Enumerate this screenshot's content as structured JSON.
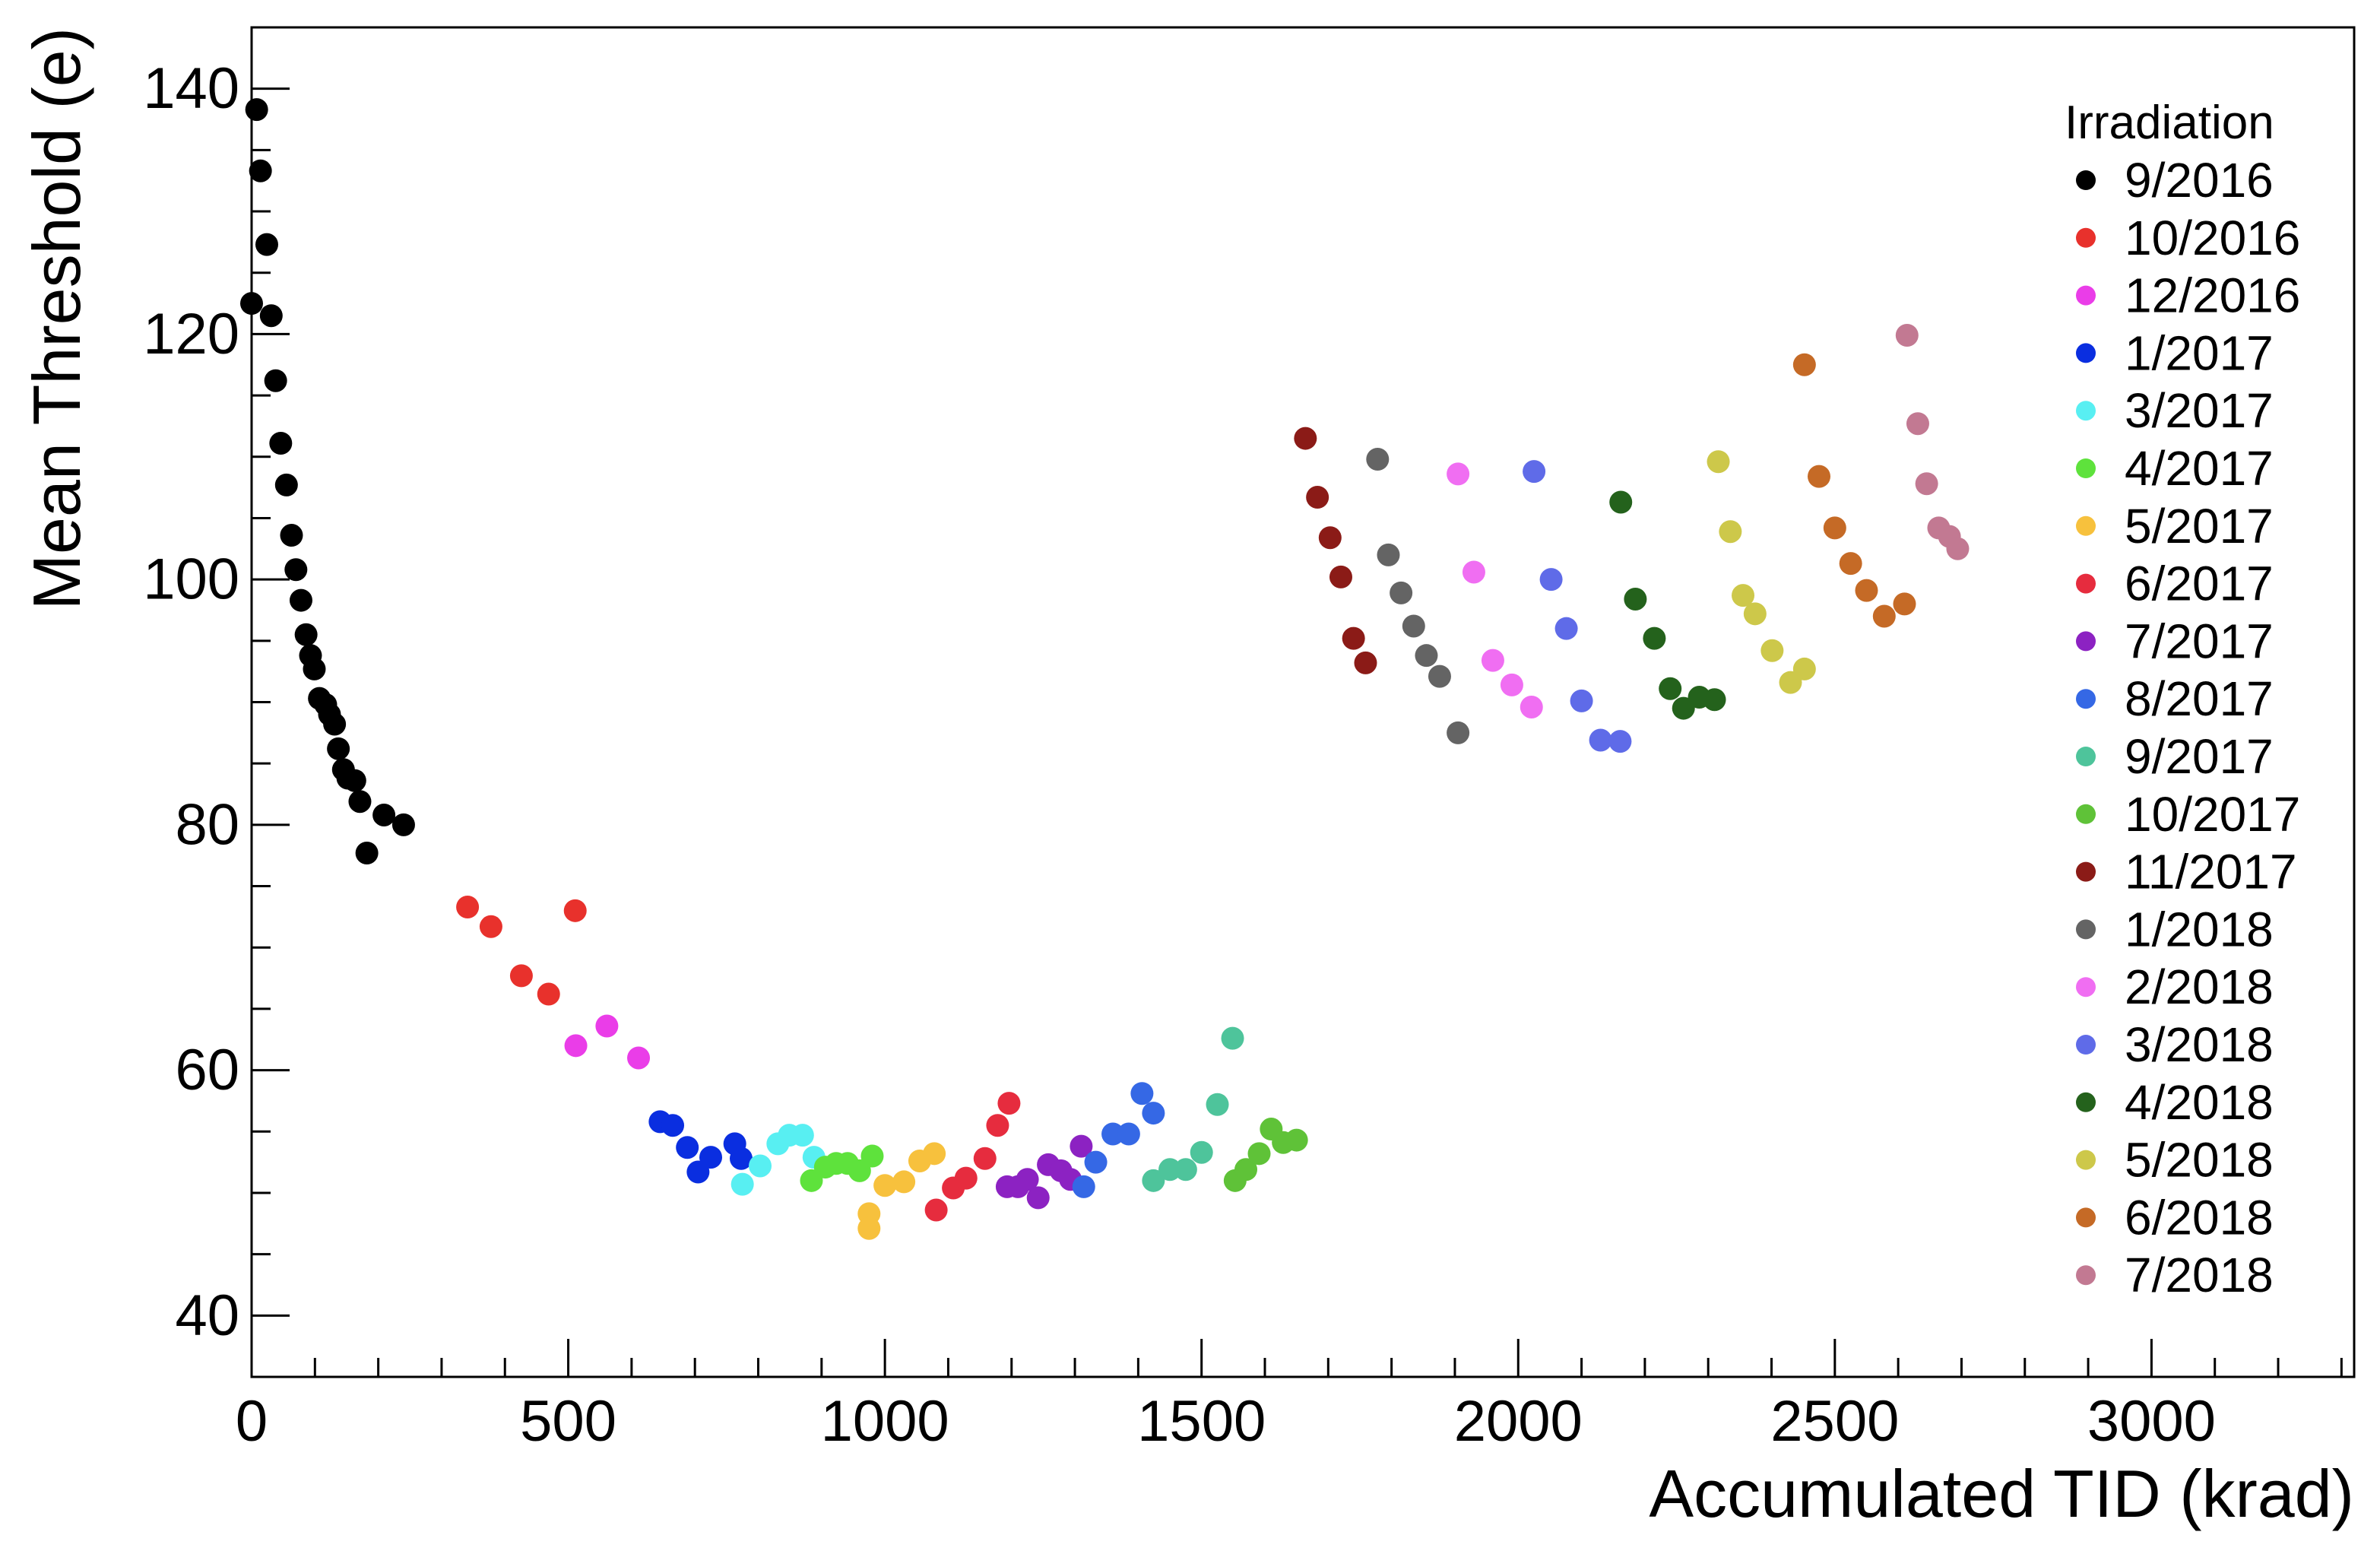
{
  "chart_data": {
    "type": "scatter",
    "xlabel": "Accumulated TID (krad)",
    "ylabel": "Mean Threshold (e)",
    "xlim": [
      0,
      3320
    ],
    "ylim": [
      35,
      145
    ],
    "xticks": [
      "0",
      "500",
      "1000",
      "1500",
      "2000",
      "2500",
      "3000"
    ],
    "xtick_values": [
      0,
      500,
      1000,
      1500,
      2000,
      2500,
      3000
    ],
    "yticks": [
      "40",
      "60",
      "80",
      "100",
      "120",
      "140"
    ],
    "ytick_values": [
      40,
      60,
      80,
      100,
      120,
      140
    ],
    "legend_title": "Irradiation",
    "legend_position": "right",
    "grid": false,
    "series": [
      {
        "name": "9/2016",
        "color": "#000000",
        "points": [
          [
            0,
            122.5
          ],
          [
            8,
            138.3
          ],
          [
            14,
            133.3
          ],
          [
            24,
            127.3
          ],
          [
            31,
            121.5
          ],
          [
            38,
            116.2
          ],
          [
            46,
            111.1
          ],
          [
            55,
            107.7
          ],
          [
            63,
            103.6
          ],
          [
            70,
            100.8
          ],
          [
            78,
            98.3
          ],
          [
            86,
            95.5
          ],
          [
            93,
            93.8
          ],
          [
            99,
            92.7
          ],
          [
            107,
            90.3
          ],
          [
            117,
            89.8
          ],
          [
            123,
            89
          ],
          [
            131,
            88.2
          ],
          [
            137,
            86.2
          ],
          [
            145,
            84.5
          ],
          [
            152,
            83.8
          ],
          [
            163,
            83.6
          ],
          [
            171,
            81.9
          ],
          [
            182,
            77.7
          ],
          [
            209,
            80.8
          ],
          [
            240,
            80
          ]
        ]
      },
      {
        "name": "10/2016",
        "color": "#e8312c",
        "points": [
          [
            341,
            73.3
          ],
          [
            378,
            71.7
          ],
          [
            426,
            67.7
          ],
          [
            469,
            66.2
          ],
          [
            511,
            73
          ]
        ]
      },
      {
        "name": "12/2016",
        "color": "#ea3de8",
        "points": [
          [
            512,
            62
          ],
          [
            561,
            63.6
          ],
          [
            611,
            61
          ]
        ]
      },
      {
        "name": "1/2017",
        "color": "#0a2ee0",
        "points": [
          [
            645,
            55.8
          ],
          [
            665,
            55.5
          ],
          [
            688,
            53.7
          ],
          [
            705,
            51.7
          ],
          [
            725,
            52.9
          ],
          [
            763,
            54
          ],
          [
            773,
            52.8
          ]
        ]
      },
      {
        "name": "3/2017",
        "color": "#58eff2",
        "points": [
          [
            775,
            50.7
          ],
          [
            803,
            52.2
          ],
          [
            831,
            54
          ],
          [
            849,
            54.7
          ],
          [
            870,
            54.7
          ],
          [
            888,
            52.9
          ]
        ]
      },
      {
        "name": "4/2017",
        "color": "#5ee23c",
        "points": [
          [
            884,
            51
          ],
          [
            906,
            52.1
          ],
          [
            923,
            52.4
          ],
          [
            941,
            52.4
          ],
          [
            960,
            51.8
          ],
          [
            980,
            53
          ]
        ]
      },
      {
        "name": "5/2017",
        "color": "#f7c13d",
        "points": [
          [
            975,
            48.3
          ],
          [
            975,
            47.1
          ],
          [
            1000,
            50.6
          ],
          [
            1030,
            50.9
          ],
          [
            1055,
            52.6
          ],
          [
            1078,
            53.2
          ]
        ]
      },
      {
        "name": "6/2017",
        "color": "#e62c3e",
        "points": [
          [
            1081,
            48.6
          ],
          [
            1108,
            50.4
          ],
          [
            1128,
            51.2
          ],
          [
            1158,
            52.8
          ],
          [
            1178,
            55.5
          ],
          [
            1196,
            57.3
          ]
        ]
      },
      {
        "name": "7/2017",
        "color": "#8c22c2",
        "points": [
          [
            1193,
            50.5
          ],
          [
            1210,
            50.5
          ],
          [
            1225,
            51.1
          ],
          [
            1242,
            49.6
          ],
          [
            1258,
            52.3
          ],
          [
            1278,
            51.8
          ],
          [
            1293,
            51.1
          ],
          [
            1310,
            53.8
          ]
        ]
      },
      {
        "name": "8/2017",
        "color": "#3568e5",
        "points": [
          [
            1314,
            50.5
          ],
          [
            1333,
            52.5
          ],
          [
            1360,
            54.8
          ],
          [
            1385,
            54.8
          ],
          [
            1406,
            58.1
          ],
          [
            1424,
            56.5
          ]
        ]
      },
      {
        "name": "9/2017",
        "color": "#4ec49b",
        "points": [
          [
            1424,
            51
          ],
          [
            1450,
            51.9
          ],
          [
            1475,
            51.9
          ],
          [
            1500,
            53.3
          ],
          [
            1525,
            57.2
          ],
          [
            1549,
            62.6
          ]
        ]
      },
      {
        "name": "10/2017",
        "color": "#5fc238",
        "points": [
          [
            1553,
            51
          ],
          [
            1570,
            51.9
          ],
          [
            1591,
            53.2
          ],
          [
            1610,
            55.2
          ],
          [
            1629,
            54.1
          ],
          [
            1650,
            54.3
          ]
        ]
      },
      {
        "name": "11/2017",
        "color": "#8b1b17",
        "points": [
          [
            1664,
            111.5
          ],
          [
            1683,
            106.7
          ],
          [
            1703,
            103.4
          ],
          [
            1720,
            100.2
          ],
          [
            1740,
            95.2
          ],
          [
            1759,
            93.2
          ]
        ]
      },
      {
        "name": "1/2018",
        "color": "#646464",
        "points": [
          [
            1778,
            109.8
          ],
          [
            1795,
            102
          ],
          [
            1815,
            98.9
          ],
          [
            1835,
            96.2
          ],
          [
            1855,
            93.8
          ],
          [
            1876,
            92.1
          ],
          [
            1905,
            87.5
          ]
        ]
      },
      {
        "name": "2/2018",
        "color": "#f06ef2",
        "points": [
          [
            1905,
            108.6
          ],
          [
            1930,
            100.6
          ],
          [
            1960,
            93.4
          ],
          [
            1990,
            91.4
          ],
          [
            2021,
            89.6
          ]
        ]
      },
      {
        "name": "3/2018",
        "color": "#5f6be8",
        "points": [
          [
            2025,
            108.8
          ],
          [
            2052,
            100
          ],
          [
            2076,
            96
          ],
          [
            2100,
            90.1
          ],
          [
            2130,
            86.9
          ],
          [
            2161,
            86.8
          ]
        ]
      },
      {
        "name": "4/2018",
        "color": "#24621c",
        "points": [
          [
            2162,
            106.3
          ],
          [
            2185,
            98.4
          ],
          [
            2215,
            95.2
          ],
          [
            2240,
            91.1
          ],
          [
            2261,
            89.5
          ],
          [
            2286,
            90.4
          ],
          [
            2310,
            90.2
          ]
        ]
      },
      {
        "name": "5/2018",
        "color": "#cdc84a",
        "points": [
          [
            2316,
            109.6
          ],
          [
            2335,
            103.9
          ],
          [
            2355,
            98.7
          ],
          [
            2374,
            97.2
          ],
          [
            2401,
            94.2
          ],
          [
            2430,
            91.6
          ],
          [
            2452,
            92.7
          ]
        ]
      },
      {
        "name": "6/2018",
        "color": "#c56a26",
        "points": [
          [
            2452,
            117.5
          ],
          [
            2475,
            108.4
          ],
          [
            2500,
            104.2
          ],
          [
            2525,
            101.3
          ],
          [
            2550,
            99.1
          ],
          [
            2578,
            97
          ],
          [
            2610,
            98
          ]
        ]
      },
      {
        "name": "7/2018",
        "color": "#c27992",
        "points": [
          [
            2614,
            119.9
          ],
          [
            2631,
            112.7
          ],
          [
            2645,
            107.8
          ],
          [
            2664,
            104.2
          ],
          [
            2681,
            103.5
          ],
          [
            2694,
            102.5
          ]
        ]
      }
    ]
  }
}
